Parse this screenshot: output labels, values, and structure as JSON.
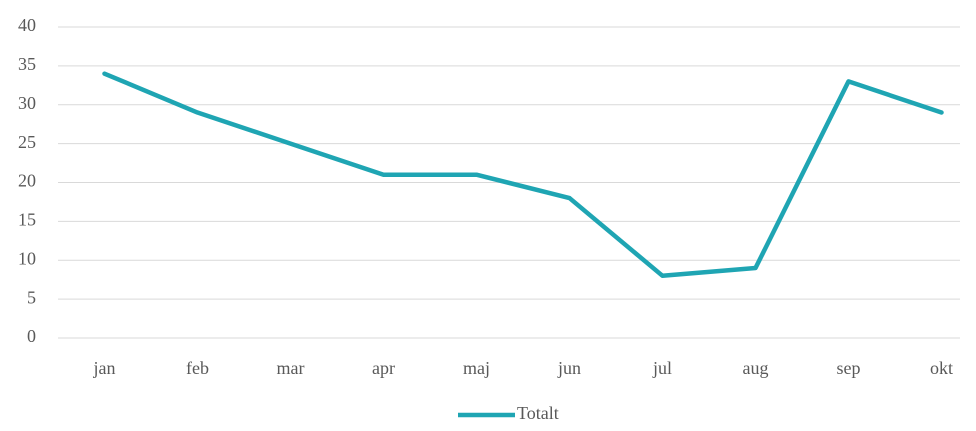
{
  "chart_data": {
    "type": "line",
    "categories": [
      "jan",
      "feb",
      "mar",
      "apr",
      "maj",
      "jun",
      "jul",
      "aug",
      "sep",
      "okt"
    ],
    "series": [
      {
        "name": "Totalt",
        "color": "#1fa5b3",
        "values": [
          34,
          29,
          25,
          21,
          21,
          18,
          8,
          9,
          33,
          29
        ]
      }
    ],
    "ylim": [
      0,
      40
    ],
    "yticks": [
      0,
      5,
      10,
      15,
      20,
      25,
      30,
      35,
      40
    ],
    "grid": true,
    "legend": "bottom"
  }
}
